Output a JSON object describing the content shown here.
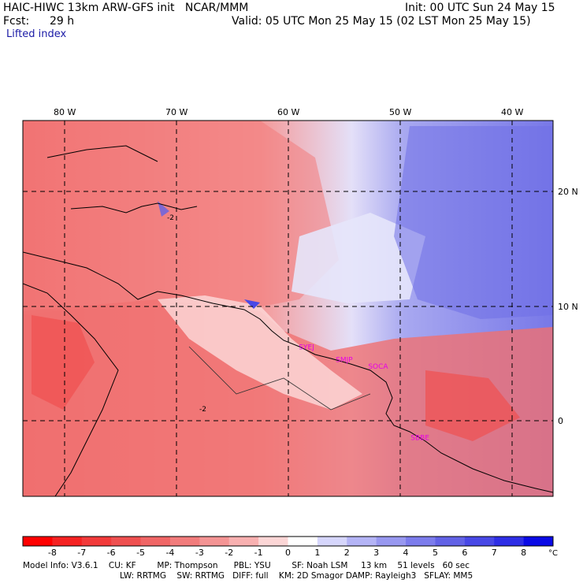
{
  "header": {
    "title_left": "HAIC-HIWC 13km ARW-GFS init   NCAR/MMM",
    "fcst_label": "Fcst:",
    "fcst_value": "29 h",
    "init": "Init: 00 UTC Sun 24 May 15",
    "valid": "Valid: 05 UTC Mon 25 May 15 (02 LST Mon 25 May 15)",
    "field": "Lifted index"
  },
  "axes": {
    "lon_labels": [
      "80 W",
      "70 W",
      "60 W",
      "50 W",
      "40 W"
    ],
    "lat_labels": [
      "20 N",
      "10 N",
      "0"
    ]
  },
  "stations": [
    {
      "id": "SYEJ",
      "lon": -58.5,
      "lat": 6.5
    },
    {
      "id": "SMJP",
      "lon": -55.2,
      "lat": 5.4
    },
    {
      "id": "SOCA",
      "lon": -52.3,
      "lat": 4.8
    },
    {
      "id": "SBBE",
      "lon": -48.5,
      "lat": -1.4
    }
  ],
  "contour_label": "-2",
  "colorbar": {
    "ticks": [
      "-8",
      "-7",
      "-6",
      "-5",
      "-4",
      "-3",
      "-2",
      "-1",
      "0",
      "1",
      "2",
      "3",
      "4",
      "5",
      "6",
      "7",
      "8"
    ],
    "unit": "°C",
    "colors": [
      "#ff0000",
      "#f52222",
      "#f23a3a",
      "#ef5050",
      "#f06666",
      "#f27c7c",
      "#f49494",
      "#f8b0b0",
      "#fcd6d6",
      "#ffffff",
      "#d6d6fc",
      "#b4b4f6",
      "#9898f0",
      "#7c7cec",
      "#6262e6",
      "#4848e6",
      "#2e2ee6",
      "#0a0ae6"
    ]
  },
  "footer": {
    "line1": "Model Info: V3.6.1    CU: KF        MP: Thompson      PBL: YSU        SF: Noah LSM     13 km    51 levels   60 sec",
    "line2": "LW: RRTMG    SW: RRTMG   DIFF: full    KM: 2D Smagor DAMP: Rayleigh3   SFLAY: MM5"
  }
}
